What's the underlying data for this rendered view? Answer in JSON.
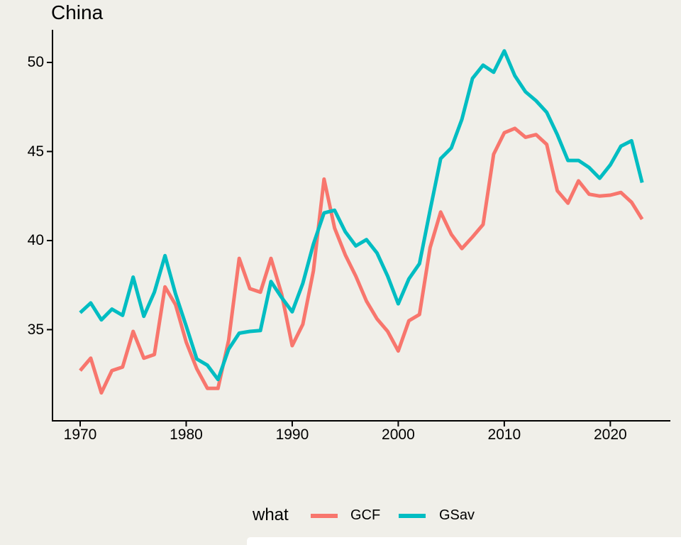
{
  "title": "China",
  "legend": {
    "title": "what",
    "items": [
      {
        "label": "GCF",
        "color": "#F8766D"
      },
      {
        "label": "GSav",
        "color": "#00BDC2"
      }
    ]
  },
  "colors": {
    "background": "#F0EFE9",
    "axis": "#000000",
    "gcf": "#F8766D",
    "gsav": "#00BDC2"
  },
  "chart_data": {
    "type": "line",
    "title": "China",
    "xlabel": "",
    "ylabel": "",
    "legend_title": "what",
    "legend_position": "bottom",
    "grid": false,
    "x_ticks": [
      1970,
      1980,
      1990,
      2000,
      2010,
      2020
    ],
    "y_ticks": [
      35,
      40,
      45,
      50
    ],
    "xlim": [
      1967.4,
      2025.6
    ],
    "ylim": [
      29.9,
      51.1
    ],
    "x": [
      1970,
      1971,
      1972,
      1973,
      1974,
      1975,
      1976,
      1977,
      1978,
      1979,
      1980,
      1981,
      1982,
      1983,
      1984,
      1985,
      1986,
      1987,
      1988,
      1989,
      1990,
      1991,
      1992,
      1993,
      1994,
      1995,
      1996,
      1997,
      1998,
      1999,
      2000,
      2001,
      2002,
      2003,
      2004,
      2005,
      2006,
      2007,
      2008,
      2009,
      2010,
      2011,
      2012,
      2013,
      2014,
      2015,
      2016,
      2017,
      2018,
      2019,
      2020,
      2021,
      2022,
      2023
    ],
    "series": [
      {
        "name": "GCF",
        "color": "#F8766D",
        "values": [
          32.7,
          33.4,
          31.45,
          32.7,
          32.9,
          34.9,
          33.4,
          33.6,
          37.4,
          36.4,
          34.3,
          32.8,
          31.7,
          31.7,
          34.4,
          39.0,
          37.3,
          37.1,
          39.0,
          37.0,
          34.1,
          35.3,
          38.3,
          43.45,
          40.7,
          39.2,
          38.0,
          36.6,
          35.6,
          34.9,
          33.8,
          35.5,
          35.85,
          39.6,
          41.6,
          40.35,
          39.55,
          40.2,
          40.9,
          44.85,
          46.05,
          46.3,
          45.8,
          45.95,
          45.4,
          42.8,
          42.1,
          43.35,
          42.6,
          42.5,
          42.55,
          42.7,
          42.15,
          41.2
        ]
      },
      {
        "name": "GSav",
        "color": "#00BDC2",
        "values": [
          35.95,
          36.5,
          35.55,
          36.15,
          35.8,
          37.95,
          35.75,
          37.1,
          39.15,
          37.0,
          35.2,
          33.35,
          33.0,
          32.2,
          33.9,
          34.8,
          34.9,
          34.95,
          37.7,
          36.8,
          36.0,
          37.6,
          39.8,
          41.55,
          41.7,
          40.5,
          39.7,
          40.05,
          39.3,
          38.0,
          36.45,
          37.85,
          38.7,
          41.7,
          44.6,
          45.2,
          46.8,
          49.1,
          49.85,
          49.45,
          50.65,
          49.25,
          48.35,
          47.85,
          47.2,
          45.95,
          44.5,
          44.5,
          44.1,
          43.5,
          44.25,
          45.3,
          45.6,
          43.25
        ]
      }
    ]
  }
}
